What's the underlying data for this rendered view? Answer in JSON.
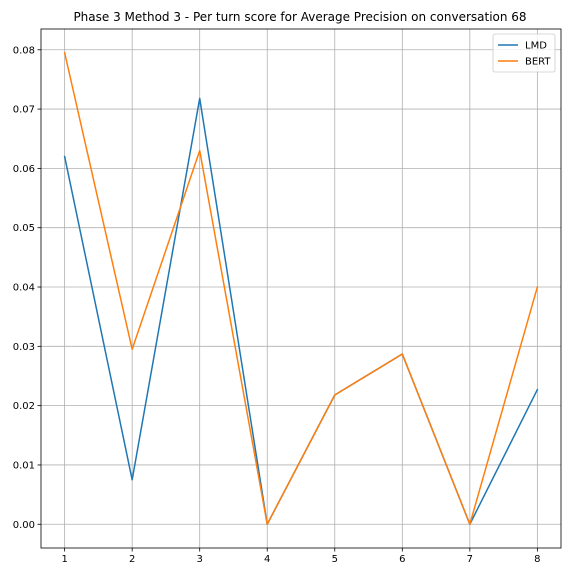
{
  "chart_data": {
    "type": "line",
    "title": "Phase 3 Method 3 - Per turn score for Average Precision on conversation 68",
    "xlabel": "",
    "ylabel": "",
    "x": [
      1,
      2,
      3,
      4,
      5,
      6,
      7,
      8
    ],
    "x_ticks": [
      "1",
      "2",
      "3",
      "4",
      "5",
      "6",
      "7",
      "8"
    ],
    "y_ticks": [
      "0.00",
      "0.01",
      "0.02",
      "0.03",
      "0.04",
      "0.05",
      "0.06",
      "0.07",
      "0.08"
    ],
    "xlim": [
      0.65,
      8.35
    ],
    "ylim": [
      -0.004,
      0.0835
    ],
    "grid": true,
    "legend_position": "top-right",
    "series": [
      {
        "name": "LMD",
        "color": "#1f77b4",
        "values": [
          0.062,
          0.0075,
          0.0718,
          0.0,
          0.0218,
          0.0287,
          0.0,
          0.0227
        ]
      },
      {
        "name": "BERT",
        "color": "#ff7f0e",
        "values": [
          0.0795,
          0.0295,
          0.063,
          0.0,
          0.0218,
          0.0287,
          0.0,
          0.04
        ]
      }
    ]
  }
}
